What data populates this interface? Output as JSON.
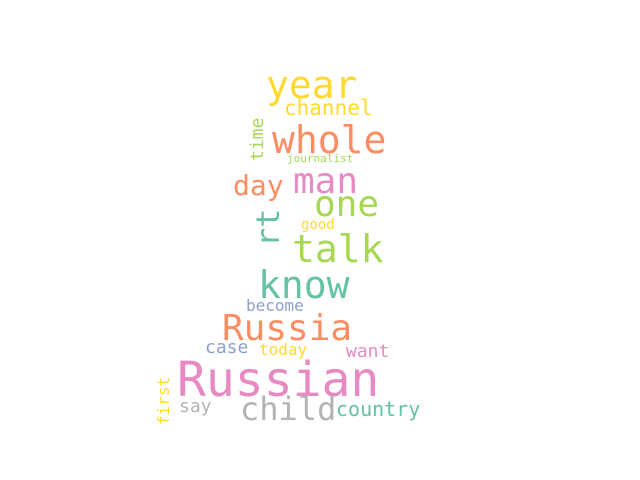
{
  "word_cloud": {
    "words": [
      {
        "text": "year",
        "color": "#ffd92f"
      },
      {
        "text": "channel",
        "color": "#ffd92f"
      },
      {
        "text": "whole",
        "color": "#fc8d62"
      },
      {
        "text": "time",
        "color": "#a6d854"
      },
      {
        "text": "journalist",
        "color": "#a6d854"
      },
      {
        "text": "day",
        "color": "#fc8d62"
      },
      {
        "text": "man",
        "color": "#e78ac3"
      },
      {
        "text": "one",
        "color": "#a6d854"
      },
      {
        "text": "rt",
        "color": "#66c2a5"
      },
      {
        "text": "good",
        "color": "#ffd92f"
      },
      {
        "text": "talk",
        "color": "#a6d854"
      },
      {
        "text": "know",
        "color": "#66c2a5"
      },
      {
        "text": "become",
        "color": "#8da0cb"
      },
      {
        "text": "Russia",
        "color": "#fc8d62"
      },
      {
        "text": "case",
        "color": "#8da0cb"
      },
      {
        "text": "today",
        "color": "#ffd92f"
      },
      {
        "text": "want",
        "color": "#e78ac3"
      },
      {
        "text": "Russian",
        "color": "#e78ac3"
      },
      {
        "text": "first",
        "color": "#ffd92f"
      },
      {
        "text": "say",
        "color": "#b3b3b3"
      },
      {
        "text": "child",
        "color": "#b3b3b3"
      },
      {
        "text": "country",
        "color": "#66c2a5"
      }
    ]
  }
}
